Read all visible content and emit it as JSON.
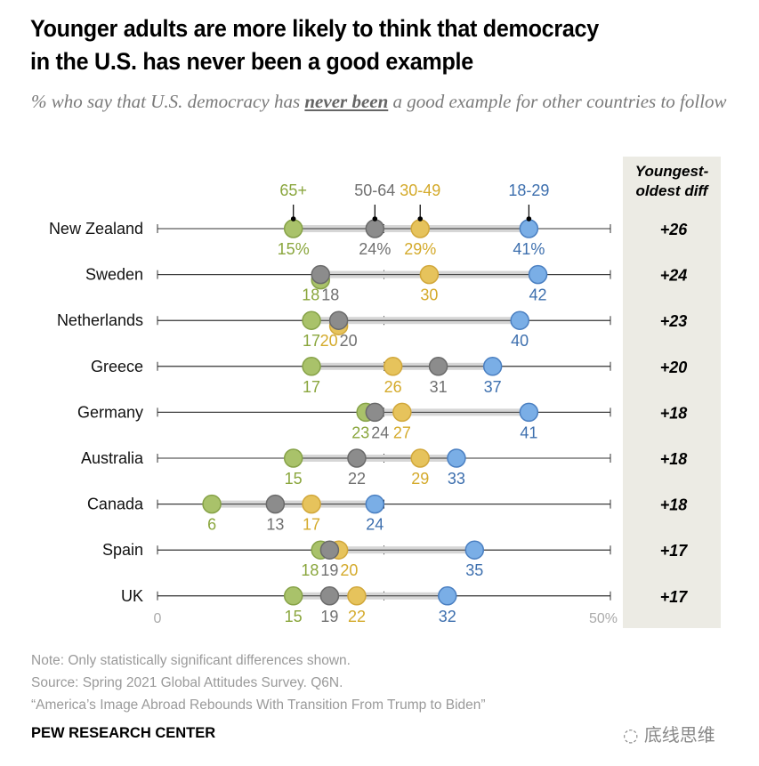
{
  "header": {
    "title_line1": "Younger adults are more likely to think that democracy",
    "title_line2": "in the U.S. has never been a good example",
    "subtitle_pre": "% who say that U.S. democracy has ",
    "subtitle_emph": "never been",
    "subtitle_post": " a good example for other countries to follow"
  },
  "diff_header_line1": "Youngest-",
  "diff_header_line2": "oldest diff",
  "footer": {
    "note": "Note: Only statistically significant differences shown.",
    "source": "Source: Spring 2021 Global Attitudes Survey. Q6N.",
    "report": "“America’s Image Abroad Rebounds With Transition From Trump to Biden”",
    "brand": "PEW RESEARCH CENTER",
    "watermark": "底线思维"
  },
  "colors": {
    "65+": "#a9c26a",
    "50-64": "#8c8c8c",
    "30-49": "#e6c35c",
    "18-29": "#7aaee6",
    "65+_text": "#8aa63d",
    "50-64_text": "#707070",
    "30-49_text": "#d4aa2b",
    "18-29_text": "#3d6fae",
    "range_bar": "#d6d6d6",
    "diff_bg": "#ecebe4"
  },
  "chart_data": {
    "type": "dot-range",
    "title": "Younger adults are more likely to think that democracy in the U.S. has never been a good example",
    "xlabel": "",
    "ylabel": "",
    "xlim": [
      0,
      50
    ],
    "x_tick_labels": [
      "0",
      "50%"
    ],
    "series_names": [
      "65+",
      "50-64",
      "30-49",
      "18-29"
    ],
    "categories": [
      "New Zealand",
      "Sweden",
      "Netherlands",
      "Greece",
      "Germany",
      "Australia",
      "Canada",
      "Spain",
      "UK"
    ],
    "series": [
      {
        "name": "65+",
        "values": [
          15,
          18,
          17,
          17,
          23,
          15,
          6,
          18,
          15
        ]
      },
      {
        "name": "50-64",
        "values": [
          24,
          18,
          20,
          31,
          24,
          22,
          13,
          19,
          19
        ]
      },
      {
        "name": "30-49",
        "values": [
          29,
          30,
          20,
          26,
          27,
          29,
          17,
          20,
          22
        ]
      },
      {
        "name": "18-29",
        "values": [
          41,
          42,
          40,
          37,
          41,
          33,
          24,
          35,
          32
        ]
      }
    ],
    "first_row_labels": [
      "15%",
      "24%",
      "29%",
      "41%"
    ],
    "youngest_oldest_diff": [
      "+26",
      "+24",
      "+23",
      "+20",
      "+18",
      "+18",
      "+18",
      "+17",
      "+17"
    ],
    "legend_placement": "top (labels above first row)"
  }
}
